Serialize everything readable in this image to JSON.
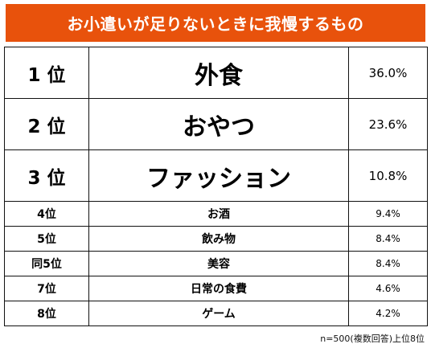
{
  "title": "お小遣いが足りないときに我慢するもの",
  "accent_color": "#e8520c",
  "footnote": "n=500(複数回答)上位8位",
  "chart_data": {
    "type": "table",
    "title": "お小遣いが足りないときに我慢するもの",
    "columns": [
      "rank",
      "item",
      "percent"
    ],
    "rows": [
      {
        "rank": "1 位",
        "item": "外食",
        "percent": "36.0%",
        "value": 36.0
      },
      {
        "rank": "2 位",
        "item": "おやつ",
        "percent": "23.6%",
        "value": 23.6
      },
      {
        "rank": "3 位",
        "item": "ファッション",
        "percent": "10.8%",
        "value": 10.8
      },
      {
        "rank": "4位",
        "item": "お酒",
        "percent": "9.4%",
        "value": 9.4
      },
      {
        "rank": "5位",
        "item": "飲み物",
        "percent": "8.4%",
        "value": 8.4
      },
      {
        "rank": "同5位",
        "item": "美容",
        "percent": "8.4%",
        "value": 8.4
      },
      {
        "rank": "7位",
        "item": "日常の食費",
        "percent": "4.6%",
        "value": 4.6
      },
      {
        "rank": "8位",
        "item": "ゲーム",
        "percent": "4.2%",
        "value": 4.2
      }
    ],
    "footnote": "n=500(複数回答)上位8位"
  }
}
